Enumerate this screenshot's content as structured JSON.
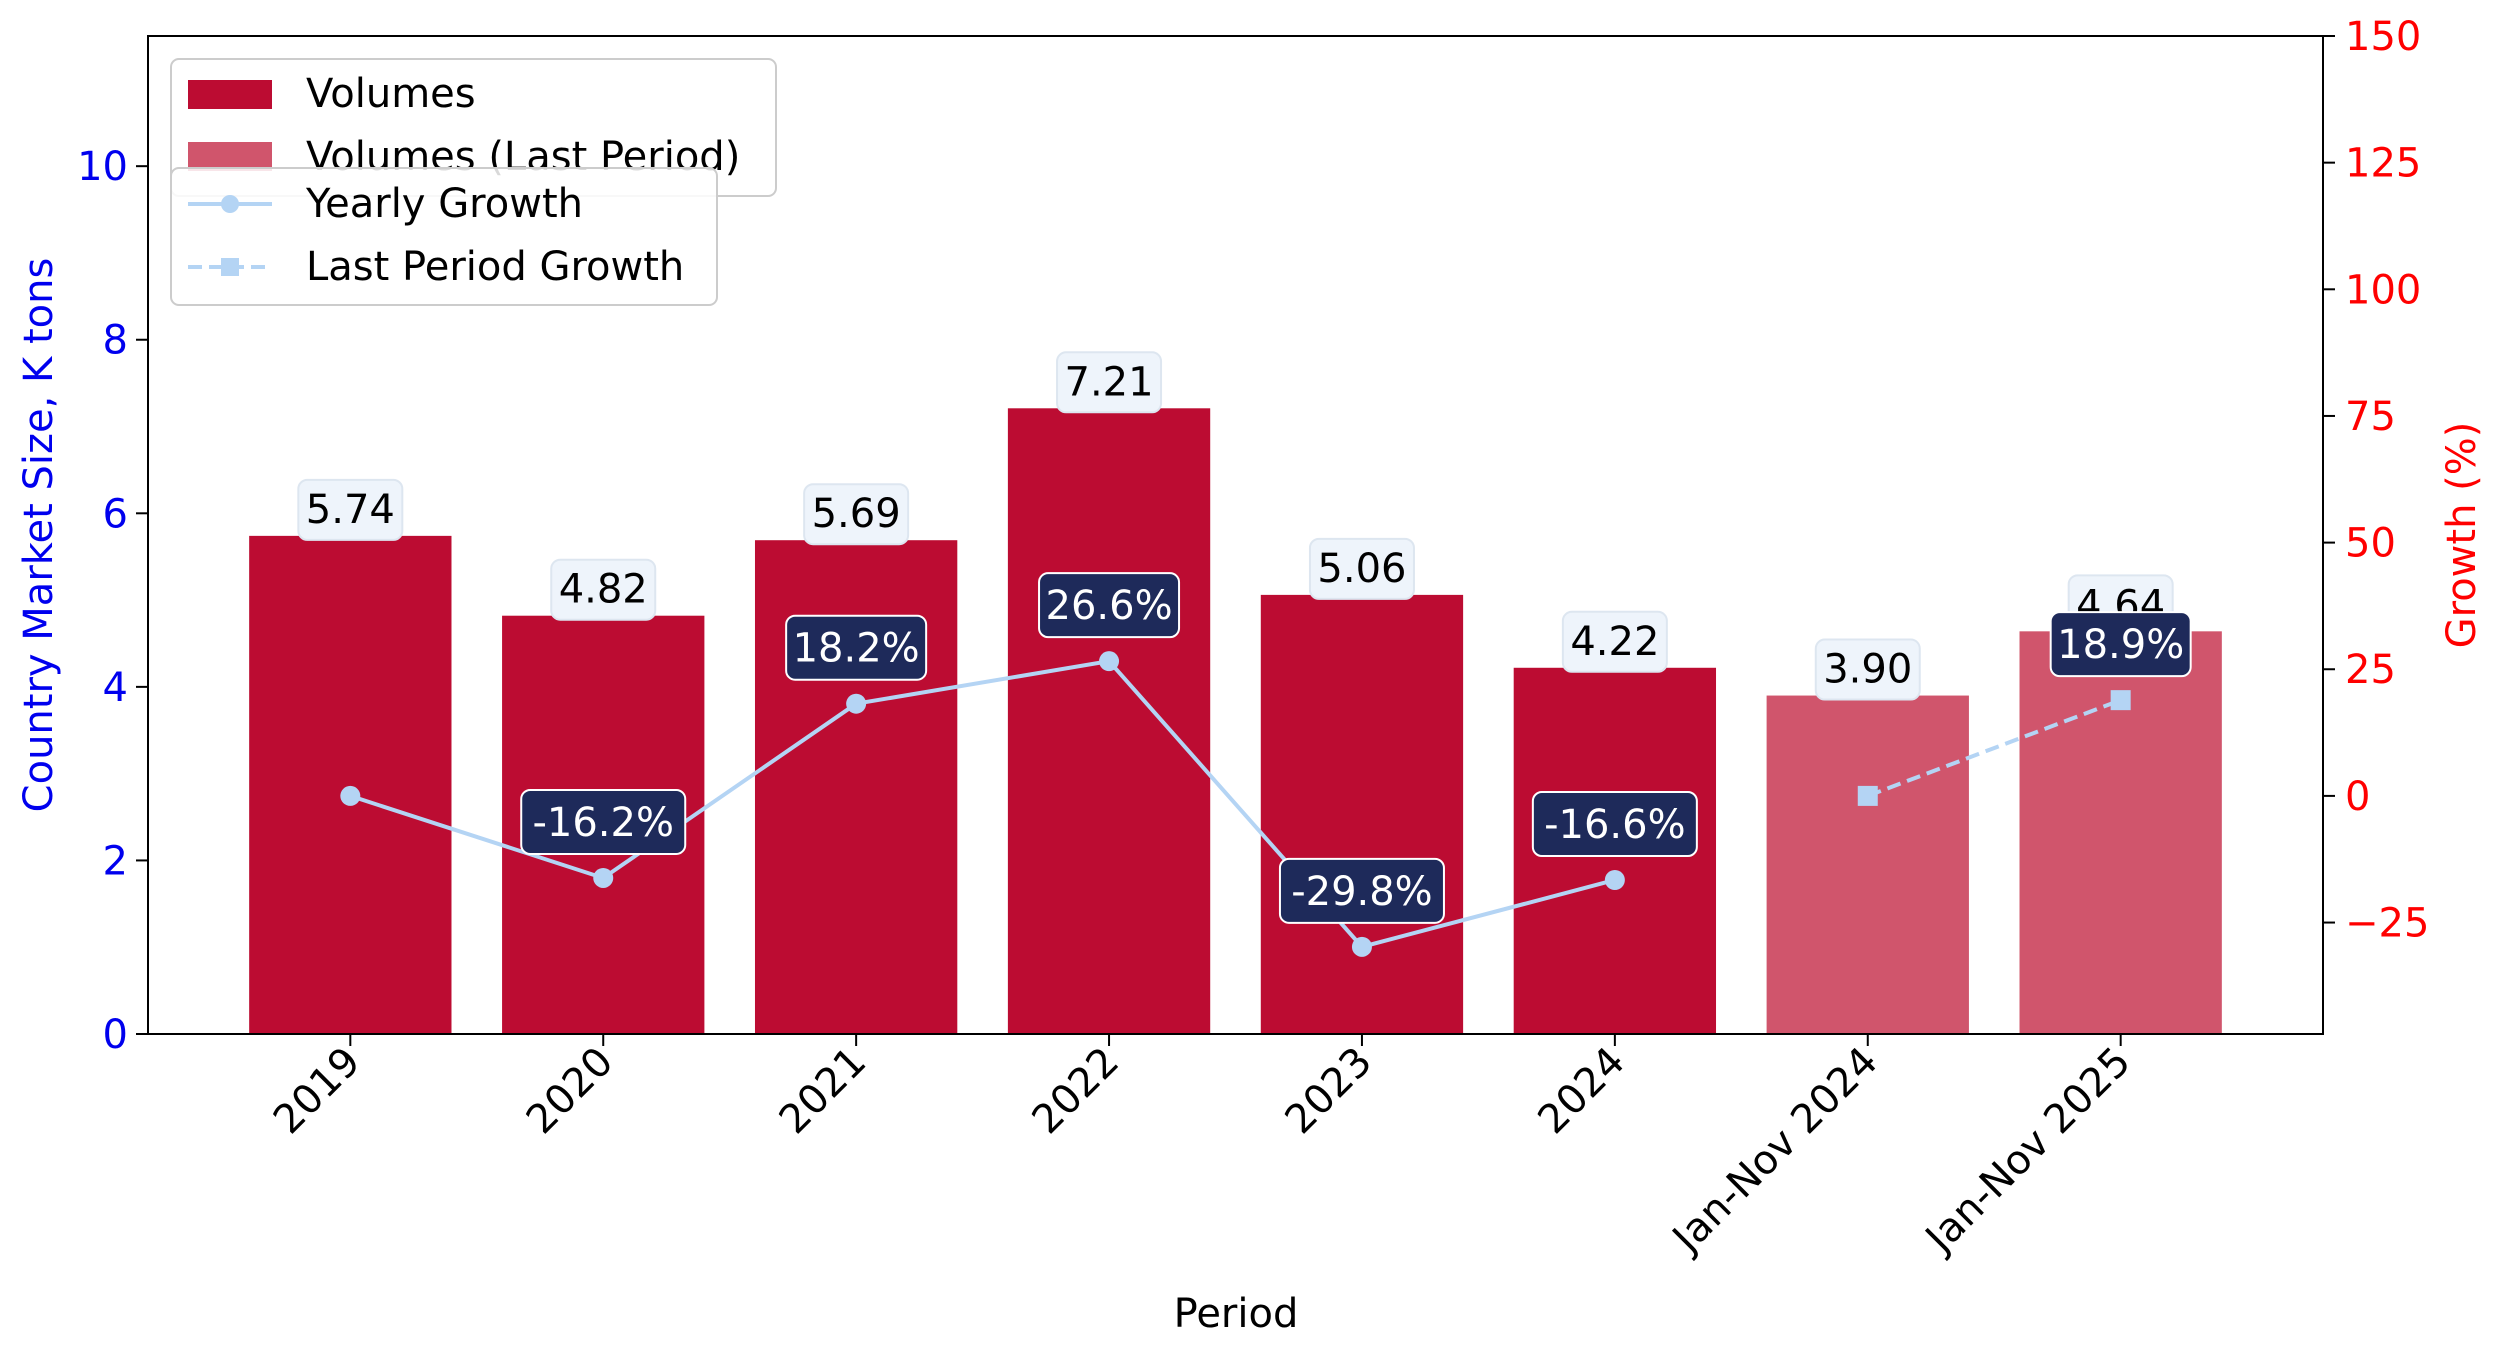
{
  "chart_data": {
    "type": "bar",
    "categories": [
      "2019",
      "2020",
      "2021",
      "2022",
      "2023",
      "2024",
      "Jan-Nov 2024",
      "Jan-Nov 2025"
    ],
    "series": [
      {
        "name": "Volumes",
        "kind": "bar",
        "axis": "left",
        "values": [
          5.74,
          4.82,
          5.69,
          7.21,
          5.06,
          4.22,
          null,
          null
        ],
        "labels": [
          "5.74",
          "4.82",
          "5.69",
          "7.21",
          "5.06",
          "4.22",
          "",
          ""
        ],
        "color": "#bc0c32"
      },
      {
        "name": "Volumes (Last Period)",
        "kind": "bar",
        "axis": "left",
        "values": [
          null,
          null,
          null,
          null,
          null,
          null,
          3.9,
          4.64
        ],
        "labels": [
          "",
          "",
          "",
          "",
          "",
          "",
          "3.90",
          "4.64"
        ],
        "color": "#d0556c"
      },
      {
        "name": "Yearly Growth",
        "kind": "line",
        "axis": "right",
        "values": [
          0,
          -16.2,
          18.2,
          26.6,
          -29.8,
          -16.6,
          null,
          null
        ],
        "labels": [
          "",
          "-16.2%",
          "18.2%",
          "26.6%",
          "-29.8%",
          "-16.6%",
          "",
          ""
        ],
        "color": "#b4d4f4",
        "marker": "circle",
        "dash": "solid"
      },
      {
        "name": "Last Period Growth",
        "kind": "line",
        "axis": "right",
        "values": [
          null,
          null,
          null,
          null,
          null,
          null,
          0,
          18.9
        ],
        "labels": [
          "",
          "",
          "",
          "",
          "",
          "",
          "",
          "18.9%"
        ],
        "color": "#b4d4f4",
        "marker": "square",
        "dash": "dashed"
      }
    ],
    "xlabel": "Period",
    "ylabel": "Country Market Size, K tons",
    "y2label": "Growth (%)",
    "ylim": [
      0,
      11.5
    ],
    "y2lim": [
      -47,
      150
    ],
    "yticks": [
      0,
      2,
      4,
      6,
      8,
      10
    ],
    "ytick_labels": [
      "0",
      "2",
      "4",
      "6",
      "8",
      "10"
    ],
    "y2ticks": [
      -25,
      0,
      25,
      50,
      75,
      100,
      125,
      150
    ],
    "y2tick_labels": [
      "−25",
      "0",
      "25",
      "50",
      "75",
      "100",
      "125",
      "150"
    ],
    "grid": false,
    "legend_bars_position": "top-left",
    "legend_lines_position": "top-left",
    "colors": {
      "left_axis": "#0000ee",
      "right_axis": "#ff0000",
      "value_label_bg": "#eef4fb",
      "growth_label_bg": "#1e2a5a"
    }
  }
}
